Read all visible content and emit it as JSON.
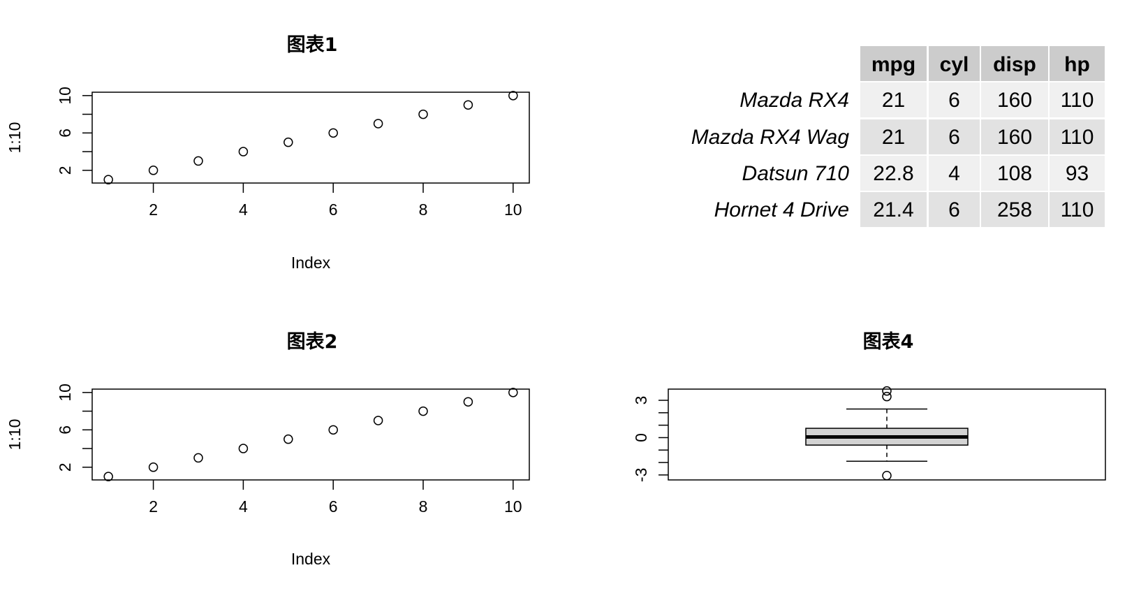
{
  "chart_data": [
    {
      "type": "scatter",
      "title": "图表1",
      "xlabel": "Index",
      "ylabel": "1:10",
      "x": [
        1,
        2,
        3,
        4,
        5,
        6,
        7,
        8,
        9,
        10
      ],
      "y": [
        1,
        2,
        3,
        4,
        5,
        6,
        7,
        8,
        9,
        10
      ],
      "xlim": [
        0.64,
        10.36
      ],
      "ylim": [
        0.64,
        10.36
      ],
      "xticks": [
        2,
        4,
        6,
        8,
        10
      ],
      "yticks": [
        2,
        6,
        10
      ],
      "yminor": [
        4,
        8
      ],
      "grid": false
    },
    {
      "type": "table",
      "columns": [
        "mpg",
        "cyl",
        "disp",
        "hp"
      ],
      "rows": [
        {
          "label": "Mazda RX4",
          "values": [
            "21",
            "6",
            "160",
            "110"
          ]
        },
        {
          "label": "Mazda RX4 Wag",
          "values": [
            "21",
            "6",
            "160",
            "110"
          ]
        },
        {
          "label": "Datsun 710",
          "values": [
            "22.8",
            "4",
            "108",
            "93"
          ]
        },
        {
          "label": "Hornet 4 Drive",
          "values": [
            "21.4",
            "6",
            "258",
            "110"
          ]
        }
      ],
      "colors": {
        "header": "#cccccc",
        "odd_row": "#f0f0f0",
        "even_row": "#e2e2e2"
      }
    },
    {
      "type": "scatter",
      "title": "图表2",
      "xlabel": "Index",
      "ylabel": "1:10",
      "x": [
        1,
        2,
        3,
        4,
        5,
        6,
        7,
        8,
        9,
        10
      ],
      "y": [
        1,
        2,
        3,
        4,
        5,
        6,
        7,
        8,
        9,
        10
      ],
      "xlim": [
        0.64,
        10.36
      ],
      "ylim": [
        0.64,
        10.36
      ],
      "xticks": [
        2,
        4,
        6,
        8,
        10
      ],
      "yticks": [
        2,
        6,
        10
      ],
      "yminor": [
        4,
        8
      ],
      "grid": false
    },
    {
      "type": "boxplot",
      "title": "图表4",
      "ylim": [
        -3.4,
        3.9
      ],
      "yticks": [
        -3,
        0,
        3
      ],
      "yticklabels": [
        "-3",
        "0",
        "3"
      ],
      "yminor": [
        -2,
        -1,
        1,
        2
      ],
      "box": {
        "whisker_low": -1.9,
        "q1": -0.6,
        "median": 0.05,
        "q3": 0.75,
        "whisker_high": 2.3
      },
      "outliers": [
        3.75,
        3.3,
        -3.05
      ],
      "colors": {
        "box_fill": "#d3d3d3"
      },
      "grid": false
    }
  ]
}
